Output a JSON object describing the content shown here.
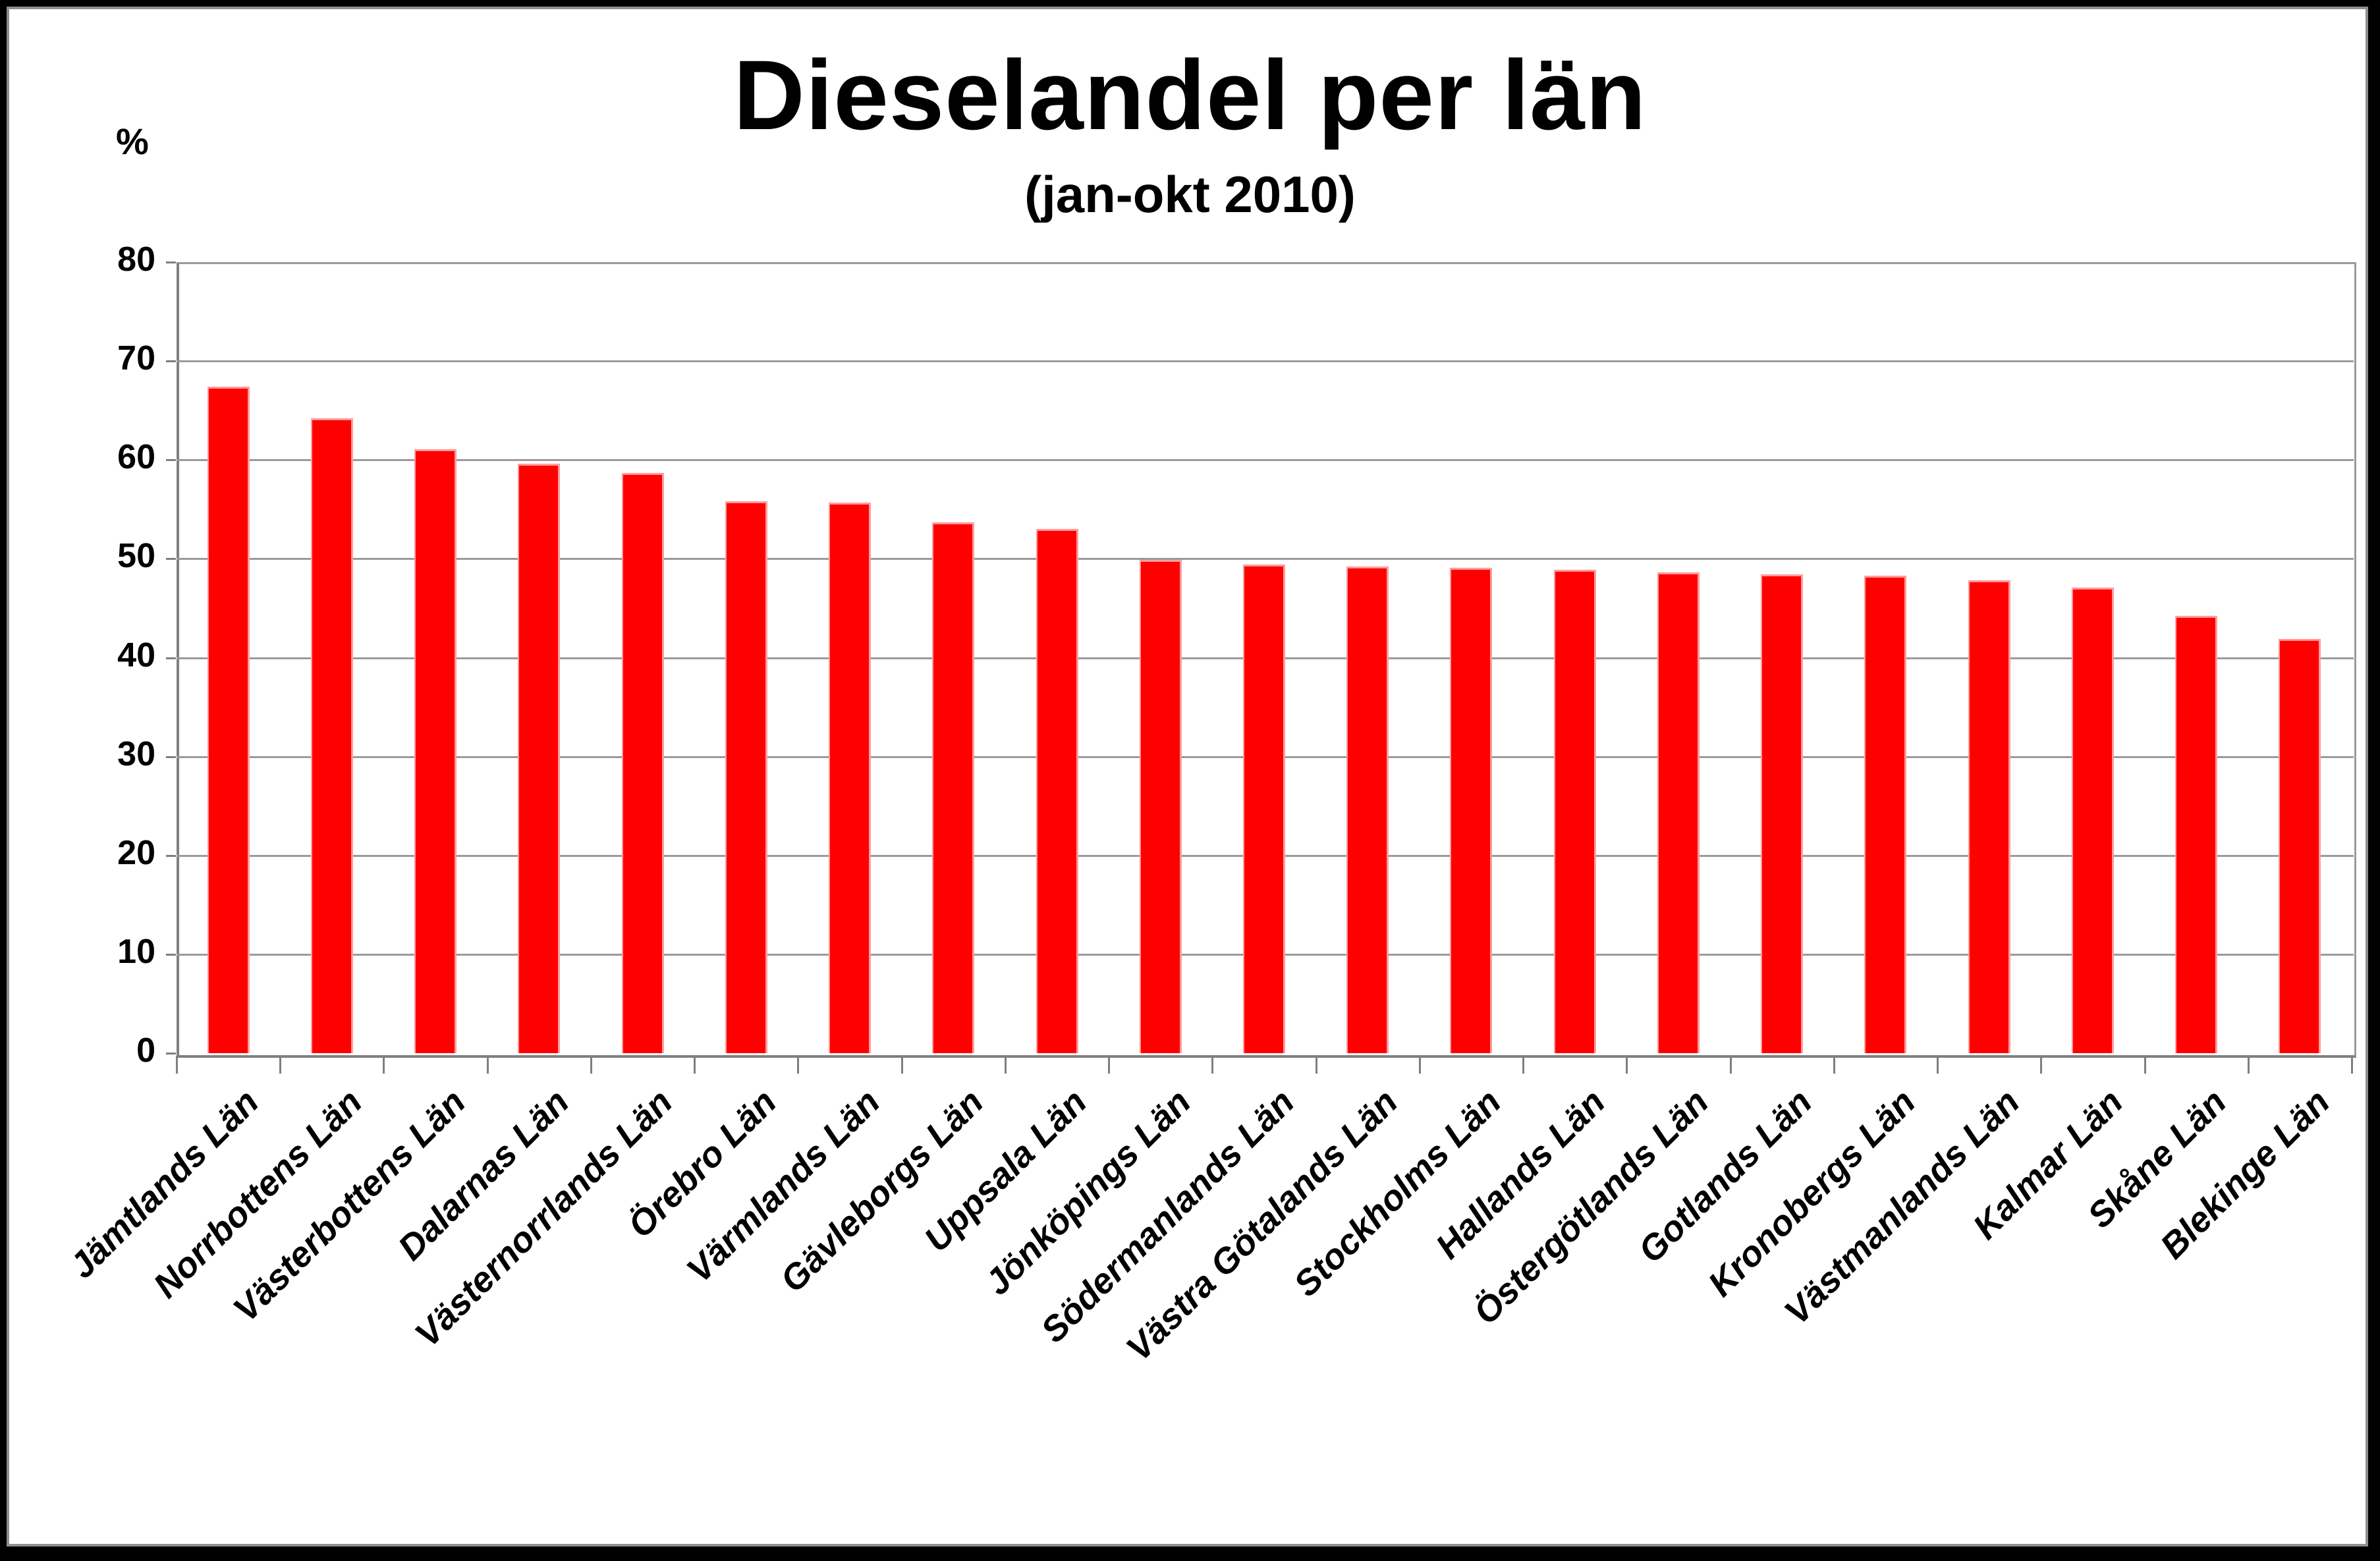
{
  "chart_data": {
    "type": "bar",
    "title": "Dieselandel per län",
    "subtitle": "(jan-okt 2010)",
    "y_unit_label": "%",
    "ylim": [
      0,
      80
    ],
    "ytick_labels": [
      "0",
      "10",
      "20",
      "30",
      "40",
      "50",
      "60",
      "70",
      "80"
    ],
    "grid": true,
    "legend": "none",
    "bar_color": "#fe0000",
    "bar_edge_color": "#ff9c9c",
    "gridline_color": "#9b9b9b",
    "axis_color": "#7f7f7f",
    "categories": [
      "Jämtlands Län",
      "Norrbottens Län",
      "Västerbottens Län",
      "Dalarnas Län",
      "Västernorrlands Län",
      "Örebro Län",
      "Värmlands Län",
      "Gävleborgs Län",
      "Uppsala Län",
      "Jönköpings Län",
      "Södermanlands Län",
      "Västra Götalands Län",
      "Stockholms Län",
      "Hallands Län",
      "Östergötlands Län",
      "Gotlands Län",
      "Kronobergs Län",
      "Västmanlands Län",
      "Kalmar Län",
      "Skåne Län",
      "Blekinge Län"
    ],
    "values": [
      67.4,
      64.2,
      61.1,
      59.6,
      58.7,
      55.8,
      55.7,
      53.7,
      53.0,
      49.9,
      49.4,
      49.2,
      49.1,
      48.9,
      48.6,
      48.4,
      48.3,
      47.8,
      47.1,
      44.2,
      41.9
    ]
  }
}
